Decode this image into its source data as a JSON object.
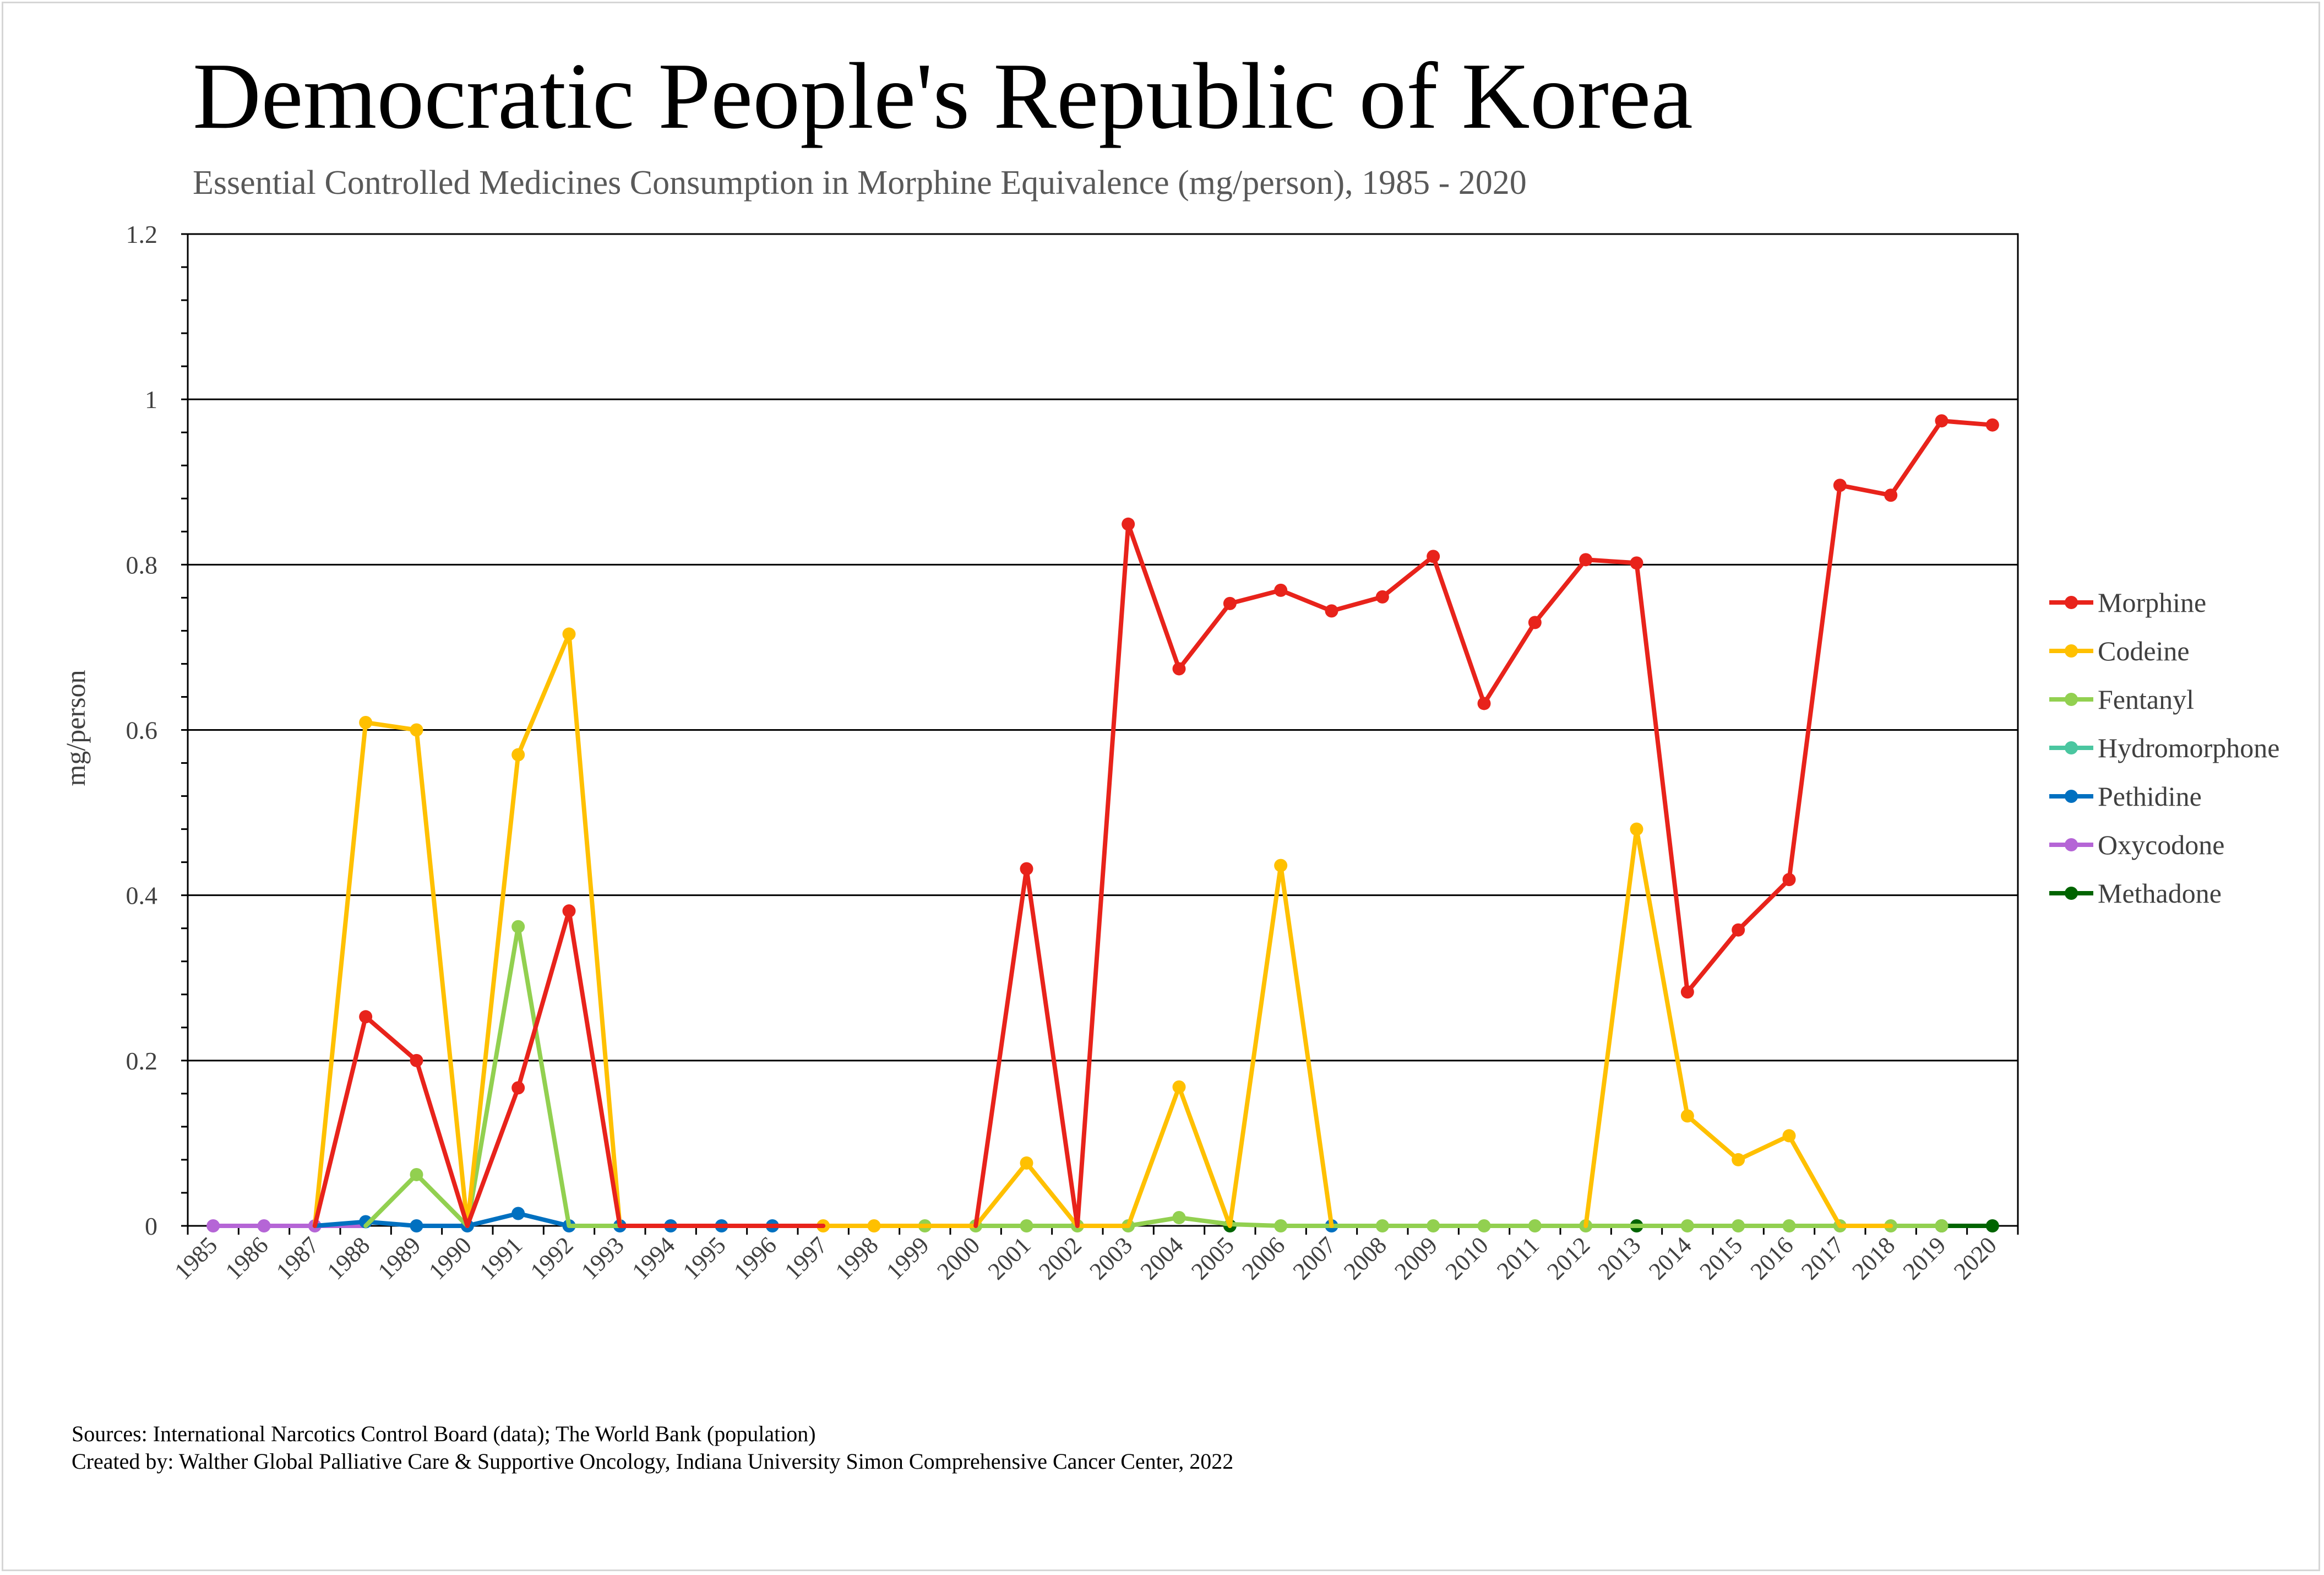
{
  "chart_data": {
    "type": "line",
    "title": "Democratic People's Republic of Korea",
    "subtitle": "Essential Controlled Medicines Consumption in Morphine Equivalence (mg/person), 1985 - 2020",
    "xlabel": "",
    "ylabel": "mg/person",
    "ylim": [
      0,
      1.2
    ],
    "yticks": [
      "0",
      "0.2",
      "0.4",
      "0.6",
      "0.8",
      "1",
      "1.2"
    ],
    "grid": true,
    "legend_position": "right",
    "categories": [
      "1985",
      "1986",
      "1987",
      "1988",
      "1989",
      "1990",
      "1991",
      "1992",
      "1993",
      "1994",
      "1995",
      "1996",
      "1997",
      "1998",
      "1999",
      "2000",
      "2001",
      "2002",
      "2003",
      "2004",
      "2005",
      "2006",
      "2007",
      "2008",
      "2009",
      "2010",
      "2011",
      "2012",
      "2013",
      "2014",
      "2015",
      "2016",
      "2017",
      "2018",
      "2019",
      "2020"
    ],
    "series": [
      {
        "name": "Morphine",
        "color": "#e8231b",
        "values": [
          0,
          0,
          0,
          0.253,
          0.2,
          0,
          0.167,
          0.381,
          0,
          0,
          0,
          0,
          0,
          0,
          0,
          0,
          0.432,
          0,
          0.849,
          0.674,
          0.753,
          0.769,
          0.744,
          0.761,
          0.81,
          0.632,
          0.73,
          0.806,
          0.802,
          0.283,
          0.358,
          0.419,
          0.896,
          0.884,
          0.974,
          0.969
        ]
      },
      {
        "name": "Codeine",
        "color": "#ffc000",
        "values": [
          0,
          0,
          0,
          0.609,
          0.6,
          0,
          0.57,
          0.716,
          0,
          0,
          0,
          0,
          0,
          0,
          0,
          0,
          0.076,
          0,
          0,
          0.168,
          0,
          0.436,
          0,
          0,
          0,
          0,
          0,
          0,
          0.48,
          0.133,
          0.08,
          0.109,
          0,
          0,
          0,
          0
        ]
      },
      {
        "name": "Fentanyl",
        "color": "#92d050",
        "values": [
          0,
          0,
          0,
          0,
          0.062,
          0,
          0.362,
          0,
          0,
          0,
          0,
          0,
          0,
          0,
          0,
          0,
          0,
          0,
          0,
          0.01,
          0.002,
          0,
          0,
          0,
          0,
          0,
          0,
          0,
          0,
          0,
          0,
          0,
          0,
          0,
          0,
          0
        ]
      },
      {
        "name": "Hydromorphone",
        "color": "#4ac6a0",
        "values": [
          0,
          0,
          0,
          0,
          0,
          0,
          0,
          0,
          0,
          0,
          0,
          0,
          0,
          0,
          0,
          0,
          0,
          0,
          0,
          0,
          0,
          0,
          0,
          0,
          0,
          0,
          0,
          0,
          0,
          0,
          0,
          0,
          0,
          0,
          0,
          0
        ]
      },
      {
        "name": "Pethidine",
        "color": "#0070c0",
        "values": [
          0,
          0,
          0,
          0.005,
          0,
          0,
          0.015,
          0,
          0,
          0,
          0,
          0,
          0,
          0,
          0,
          0,
          0,
          0,
          0,
          0,
          0,
          0,
          0,
          0,
          0,
          0,
          0,
          0,
          0,
          0,
          0,
          0,
          0,
          0,
          0,
          0
        ]
      },
      {
        "name": "Oxycodone",
        "color": "#b565d6",
        "values": [
          0,
          0,
          0,
          0,
          0,
          0,
          0,
          0,
          0,
          0,
          0,
          0,
          0,
          0,
          0,
          0,
          0,
          0,
          0,
          0,
          0,
          0,
          0,
          0,
          0,
          0,
          0,
          0,
          0,
          0,
          0,
          0,
          0,
          0,
          0,
          0
        ]
      },
      {
        "name": "Methadone",
        "color": "#006400",
        "values": [
          0,
          0,
          0,
          0,
          0,
          0,
          0,
          0,
          0,
          0,
          0,
          0,
          0,
          0,
          0,
          0,
          0,
          0,
          0,
          0,
          0,
          0,
          0,
          0,
          0,
          0,
          0,
          0,
          0,
          0,
          0,
          0,
          0,
          0,
          0,
          0
        ]
      }
    ],
    "visible_markers": {
      "Morphine": [
        3,
        4,
        6,
        7,
        16,
        18,
        19,
        20,
        21,
        22,
        23,
        24,
        25,
        26,
        27,
        28,
        29,
        30,
        31,
        32,
        33,
        34,
        35
      ],
      "Codeine": [
        3,
        4,
        6,
        7,
        12,
        13,
        16,
        19,
        21,
        28,
        29,
        30,
        31
      ],
      "Fentanyl": [
        4,
        6,
        14,
        15,
        16,
        17,
        18,
        19,
        21,
        23,
        24,
        25,
        26,
        27,
        29,
        30,
        31,
        32,
        33,
        34
      ],
      "Hydromorphone": [],
      "Pethidine": [
        3,
        4,
        5,
        6,
        7,
        8,
        9,
        10,
        11,
        22
      ],
      "Oxycodone": [
        0,
        1,
        2
      ],
      "Methadone": [
        20,
        28,
        34,
        35
      ]
    },
    "line_segments": {
      "Morphine": [
        [
          2,
          12
        ],
        [
          15,
          35
        ]
      ],
      "Codeine": [
        [
          2,
          9
        ],
        [
          11,
          16
        ],
        [
          16,
          20
        ],
        [
          20,
          22
        ],
        [
          27,
          33
        ]
      ],
      "Fentanyl": [
        [
          3,
          6
        ],
        [
          6,
          8
        ],
        [
          13,
          34
        ]
      ],
      "Hydromorphone": [],
      "Pethidine": [
        [
          2,
          12
        ]
      ],
      "Oxycodone": [
        [
          0,
          3
        ]
      ],
      "Methadone": [
        [
          34,
          35
        ]
      ]
    }
  },
  "footer": {
    "sources": "Sources: International Narcotics Control Board (data); The World Bank (population)",
    "created_by": "Created by: Walther Global Palliative Care & Supportive Oncology, Indiana University Simon Comprehensive Cancer Center, 2022"
  }
}
